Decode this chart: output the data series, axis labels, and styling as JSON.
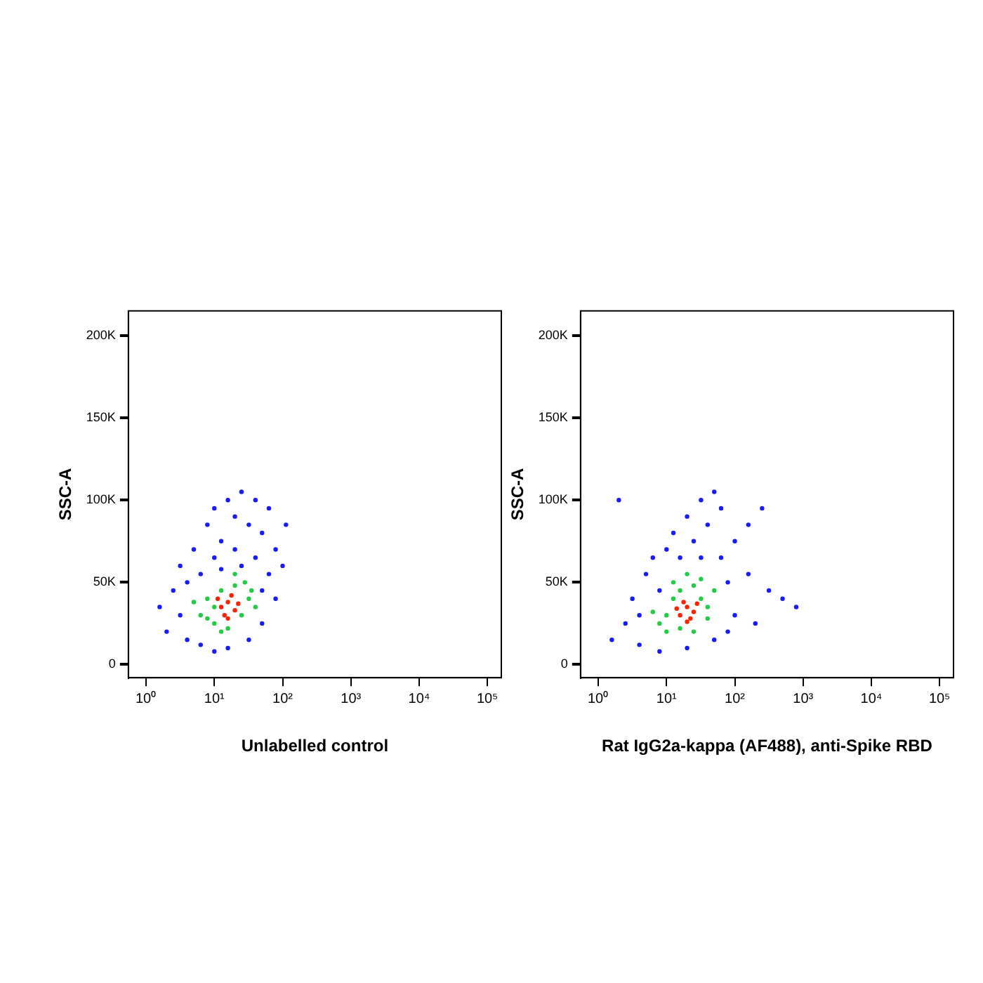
{
  "chart_data": [
    {
      "type": "scatter",
      "xlabel": "Unlabelled control",
      "ylabel": "SSC-A",
      "log": "x",
      "marker": "circle",
      "legend": false,
      "grid": false,
      "xlim": [
        0.55,
        160000
      ],
      "ylim": [
        -8000,
        215000
      ],
      "xticks": [
        {
          "value": 1,
          "label": "10⁰"
        },
        {
          "value": 10,
          "label": "10¹"
        },
        {
          "value": 100,
          "label": "10²"
        },
        {
          "value": 1000,
          "label": "10³"
        },
        {
          "value": 10000,
          "label": "10⁴"
        },
        {
          "value": 100000,
          "label": "10⁵"
        }
      ],
      "yticks": [
        {
          "value": 0,
          "label": "0"
        },
        {
          "value": 50000,
          "label": "50K"
        },
        {
          "value": 100000,
          "label": "100K"
        },
        {
          "value": 150000,
          "label": "150K"
        },
        {
          "value": 200000,
          "label": "200K"
        }
      ],
      "series": [
        {
          "color": "#1a1aff",
          "x": [
            2.0,
            2.5,
            3.16,
            4.0,
            3.16,
            5.0,
            6.3,
            6.3,
            7.9,
            10,
            10,
            12.6,
            15.8,
            20,
            20,
            25,
            32,
            40,
            40,
            50,
            63,
            63,
            79,
            50,
            32,
            15.8,
            79,
            100,
            1.58,
            25,
            12.6,
            4.0,
            50,
            112,
            10
          ],
          "values": [
            20000,
            45000,
            30000,
            15000,
            60000,
            70000,
            55000,
            12000,
            85000,
            65000,
            95000,
            75000,
            100000,
            90000,
            70000,
            105000,
            85000,
            100000,
            65000,
            80000,
            95000,
            55000,
            70000,
            25000,
            15000,
            10000,
            40000,
            60000,
            35000,
            60000,
            58000,
            50000,
            45000,
            85000,
            8000
          ]
        },
        {
          "color": "#22cc44",
          "x": [
            6.3,
            7.9,
            10,
            12.6,
            20,
            25,
            32,
            10,
            15.8,
            28,
            7.9,
            20,
            40,
            12.6,
            5.0,
            35
          ],
          "values": [
            30000,
            40000,
            25000,
            45000,
            48000,
            30000,
            40000,
            35000,
            22000,
            50000,
            28000,
            55000,
            35000,
            20000,
            38000,
            45000
          ]
        },
        {
          "color": "#ff2200",
          "x": [
            12.6,
            15.8,
            20,
            17.8,
            14.1,
            22.4,
            11.2,
            15.8
          ],
          "values": [
            35000,
            38000,
            33000,
            42000,
            30000,
            37000,
            40000,
            28000
          ]
        }
      ]
    },
    {
      "type": "scatter",
      "xlabel": "Rat IgG2a-kappa (AF488), anti-Spike RBD",
      "ylabel": "SSC-A",
      "log": "x",
      "marker": "circle",
      "legend": false,
      "grid": false,
      "xlim": [
        0.55,
        160000
      ],
      "ylim": [
        -8000,
        215000
      ],
      "xticks": [
        {
          "value": 1,
          "label": "10⁰"
        },
        {
          "value": 10,
          "label": "10¹"
        },
        {
          "value": 100,
          "label": "10²"
        },
        {
          "value": 1000,
          "label": "10³"
        },
        {
          "value": 10000,
          "label": "10⁴"
        },
        {
          "value": 100000,
          "label": "10⁵"
        }
      ],
      "yticks": [
        {
          "value": 0,
          "label": "0"
        },
        {
          "value": 50000,
          "label": "50K"
        },
        {
          "value": 100000,
          "label": "100K"
        },
        {
          "value": 150000,
          "label": "150K"
        },
        {
          "value": 200000,
          "label": "200K"
        }
      ],
      "series": [
        {
          "color": "#1a1aff",
          "x": [
            1.58,
            2.5,
            3.16,
            4.0,
            5.0,
            6.3,
            7.9,
            10,
            12.6,
            15.8,
            20,
            25,
            32,
            40,
            50,
            63,
            63,
            79,
            100,
            100,
            50,
            20,
            7.9,
            158,
            316,
            501,
            794,
            251,
            158,
            2.0,
            4.0,
            79,
            32,
            200
          ],
          "values": [
            15000,
            25000,
            40000,
            12000,
            55000,
            65000,
            45000,
            70000,
            80000,
            65000,
            90000,
            75000,
            100000,
            85000,
            105000,
            95000,
            65000,
            50000,
            75000,
            30000,
            15000,
            10000,
            8000,
            55000,
            45000,
            40000,
            35000,
            95000,
            85000,
            100000,
            30000,
            20000,
            65000,
            25000
          ]
        },
        {
          "color": "#22cc44",
          "x": [
            7.9,
            10,
            12.6,
            15.8,
            25,
            32,
            40,
            10,
            15.8,
            32,
            50,
            20,
            6.3,
            40,
            25,
            12.6
          ],
          "values": [
            25000,
            30000,
            40000,
            45000,
            48000,
            40000,
            35000,
            20000,
            22000,
            52000,
            45000,
            55000,
            32000,
            28000,
            20000,
            50000
          ]
        },
        {
          "color": "#ff2200",
          "x": [
            15.8,
            20,
            25,
            17.8,
            22.4,
            14.1,
            28,
            20
          ],
          "values": [
            30000,
            35000,
            32000,
            38000,
            28000,
            34000,
            37000,
            26000
          ]
        }
      ]
    }
  ]
}
